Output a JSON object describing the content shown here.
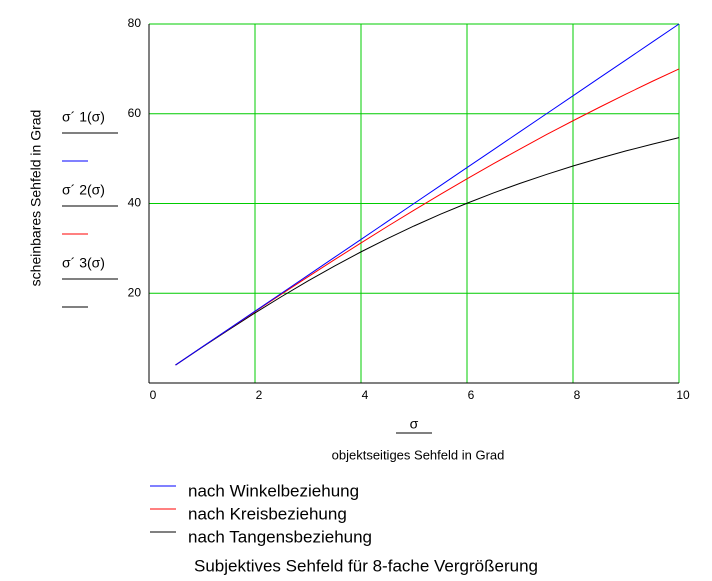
{
  "chart_data": {
    "type": "line",
    "title": "Subjektives Sehfeld für 8-fache Vergrößerung",
    "y_label": "scheinbares Sehfeld in Grad",
    "x_symbol": "σ",
    "x_label": "objektseitiges Sehfeld in Grad",
    "y_trace_labels": [
      "σ´ 1(σ)",
      "σ´ 2(σ)",
      "σ´ 3(σ)"
    ],
    "x": [
      0.5,
      1,
      1.5,
      2,
      2.5,
      3,
      3.5,
      4,
      4.5,
      5,
      5.5,
      6,
      6.5,
      7,
      7.5,
      8,
      8.5,
      9,
      9.5,
      10
    ],
    "series": [
      {
        "name": "nach Winkelbeziehung",
        "color": "#0000ff",
        "values": [
          4,
          8,
          12,
          16,
          20,
          24,
          28,
          32,
          36,
          40,
          44,
          48,
          52,
          56,
          60,
          64,
          68,
          72,
          76,
          80
        ]
      },
      {
        "name": "nach Kreisbeziehung",
        "color": "#ff0000",
        "values": [
          4.0,
          7.99,
          11.96,
          15.91,
          19.81,
          23.67,
          27.47,
          31.22,
          34.9,
          38.51,
          42.04,
          45.5,
          48.86,
          52.14,
          55.35,
          58.44,
          61.45,
          64.38,
          67.24,
          69.98
        ]
      },
      {
        "name": "nach Tangensbeziehung",
        "color": "#000000",
        "values": [
          3.99,
          7.95,
          11.83,
          15.61,
          19.25,
          22.75,
          26.07,
          29.22,
          32.19,
          34.99,
          37.61,
          40.06,
          42.35,
          44.49,
          46.48,
          48.35,
          50.09,
          51.72,
          53.24,
          54.67
        ]
      }
    ],
    "xlim": [
      0,
      10
    ],
    "xticks": [
      0,
      2,
      4,
      6,
      8,
      10
    ],
    "ylim": [
      0,
      80
    ],
    "yticks": [
      20,
      40,
      60,
      80
    ],
    "grid": true,
    "grid_color": "#00cc00"
  }
}
